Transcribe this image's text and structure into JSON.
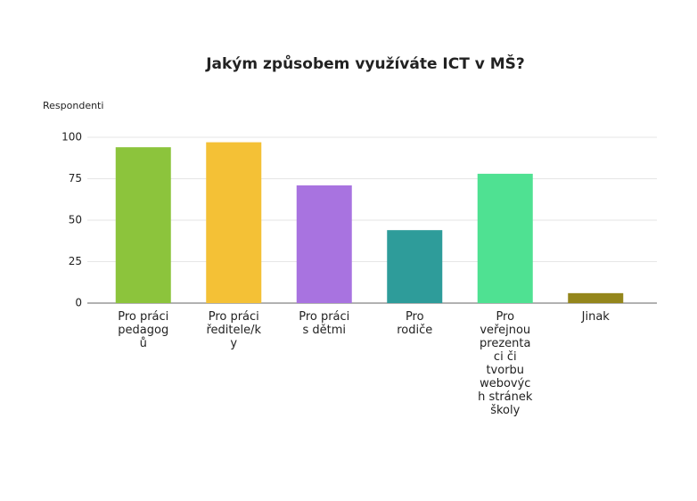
{
  "chart_data": {
    "type": "bar",
    "title": "Jakým způsobem využíváte ICT v MŠ?",
    "y_label": "Respondenti",
    "categories": [
      "Pro práci pedagogů",
      "Pro práci ředitele/ky",
      "Pro práci s dětmi",
      "Pro rodiče",
      "Pro veřejnou prezentaci či tvorbu webových stránek školy",
      "Jinak"
    ],
    "values": [
      94,
      97,
      71,
      44,
      78,
      6
    ],
    "colors": [
      "#8cc43c",
      "#f4c136",
      "#a873e0",
      "#2e9c9a",
      "#4fe192",
      "#94861c"
    ],
    "ylim": [
      0,
      100
    ],
    "yticks": [
      0,
      25,
      50,
      75,
      100
    ],
    "grid": true
  }
}
